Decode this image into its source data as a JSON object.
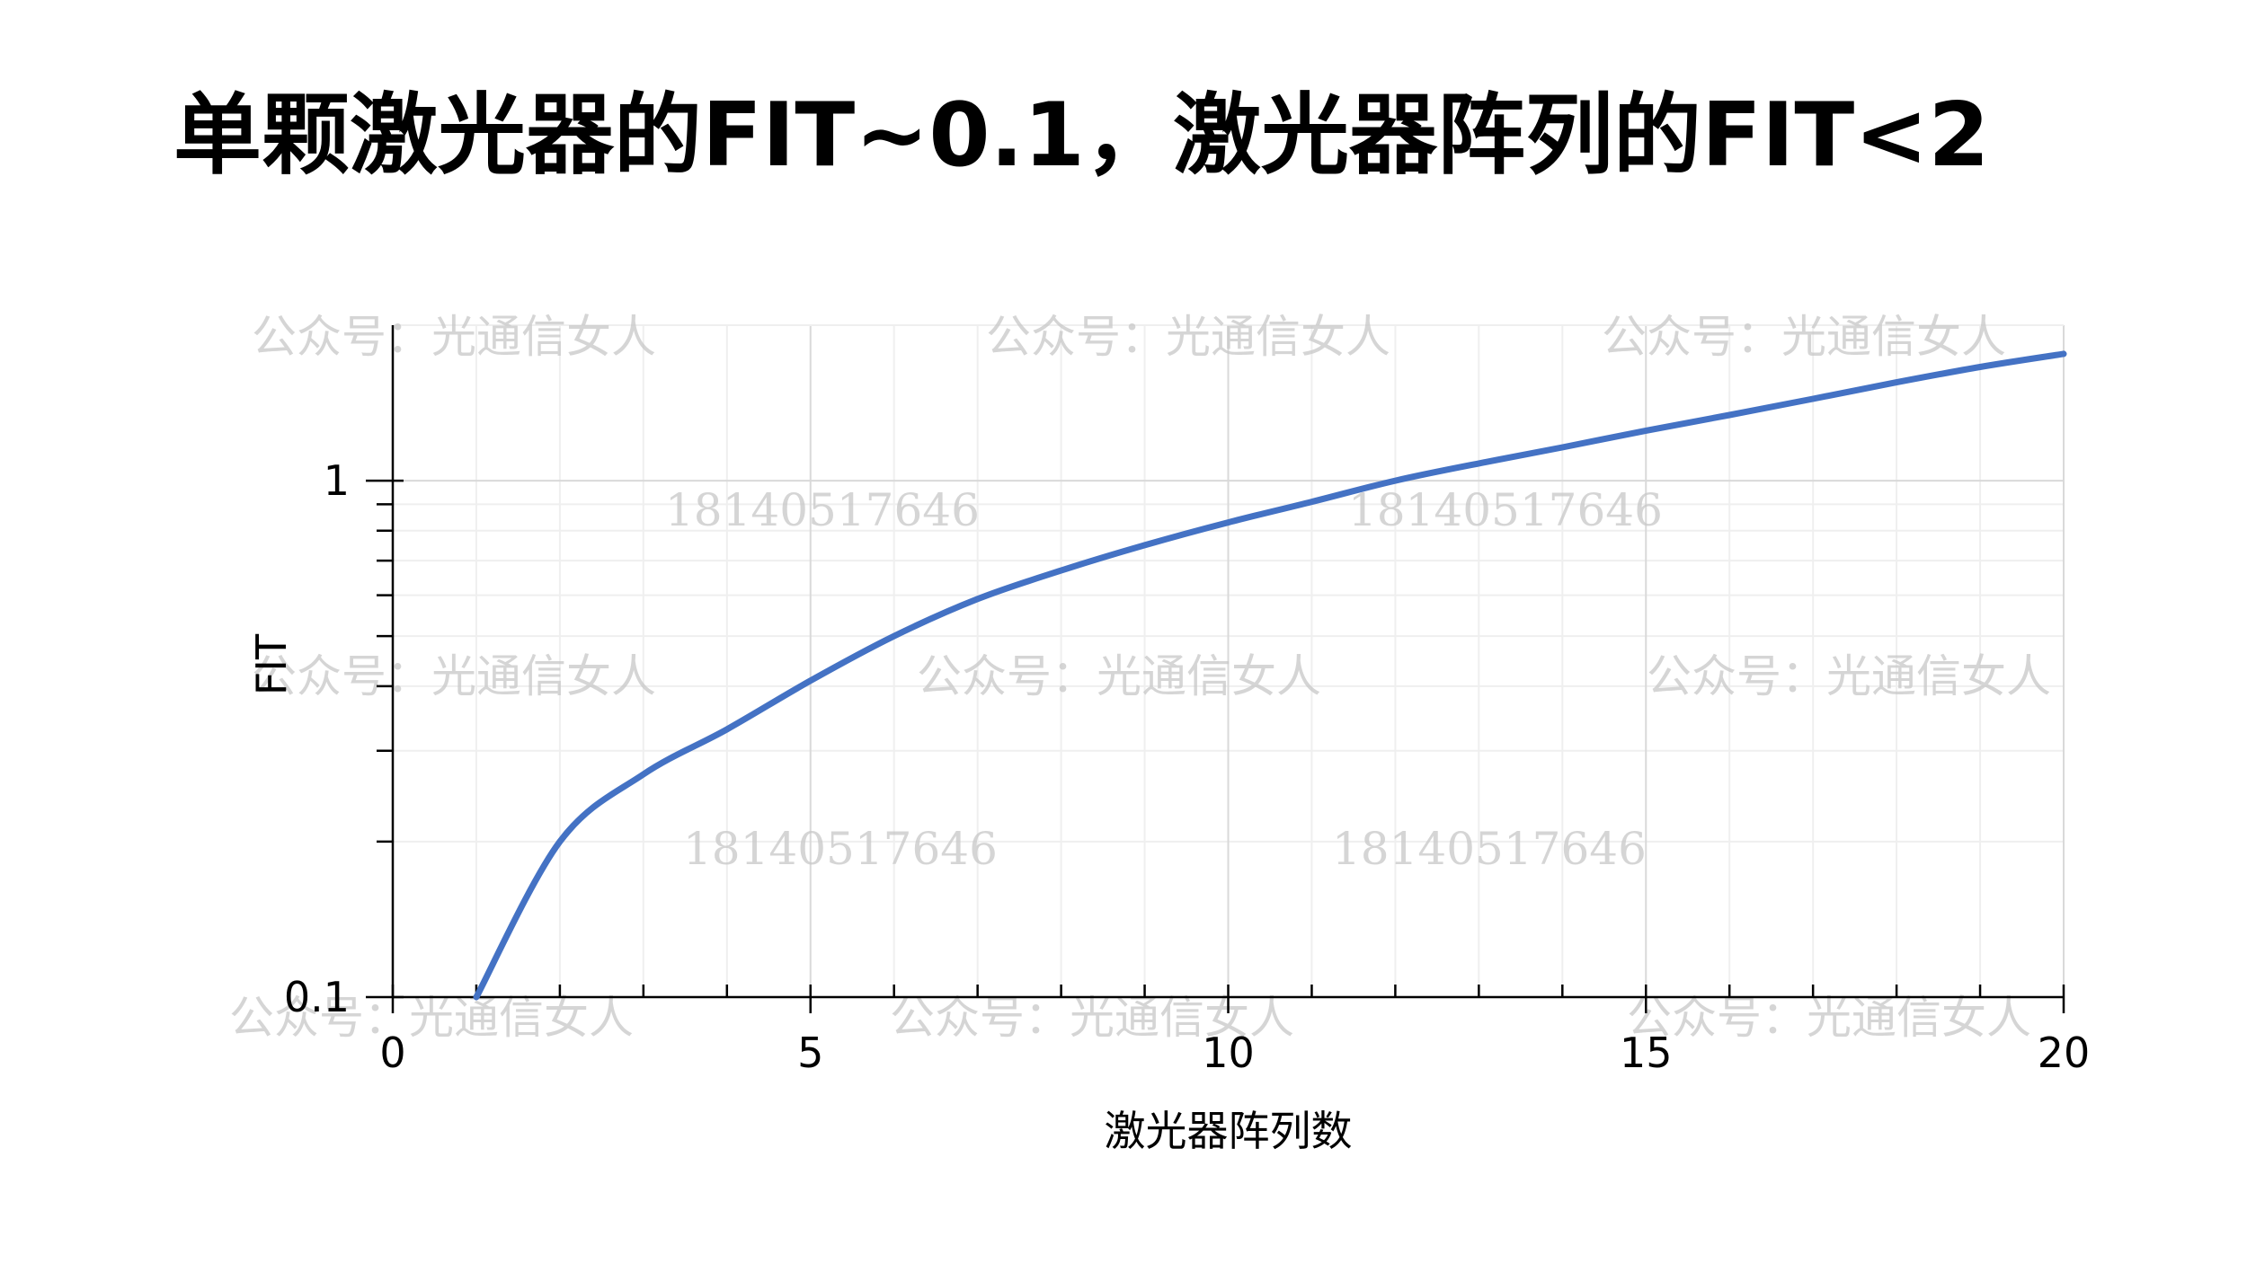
{
  "slide": {
    "title": "单颗激光器的FIT~0.1，激光器阵列的FIT<2"
  },
  "watermarks": {
    "account": "公众号：光通信女人",
    "phone": "18140517646"
  },
  "colors": {
    "line": "#4472c4",
    "axis": "#000000",
    "major_grid": "#d9d9d9",
    "minor_grid": "#efefef"
  },
  "chart_data": {
    "type": "line",
    "title": "",
    "xlabel": "激光器阵列数",
    "ylabel": "FIT",
    "x_scale": "linear",
    "y_scale": "log",
    "xlim": [
      0,
      20
    ],
    "ylim": [
      0.1,
      2
    ],
    "x_ticks": [
      0,
      5,
      10,
      15,
      20
    ],
    "x_tick_labels": [
      "0",
      "5",
      "10",
      "15",
      "20"
    ],
    "y_ticks": [
      0.1,
      1
    ],
    "y_tick_labels": [
      "0.1",
      "1"
    ],
    "grid": true,
    "legend": "none",
    "series": [
      {
        "x": [
          1,
          2,
          3,
          4,
          5,
          6,
          7,
          8,
          9,
          10,
          11,
          12,
          13,
          14,
          15,
          16,
          17,
          18,
          19,
          20
        ],
        "values": [
          0.1,
          0.2,
          0.27,
          0.33,
          0.41,
          0.5,
          0.59,
          0.67,
          0.75,
          0.83,
          0.91,
          1.0,
          1.08,
          1.16,
          1.25,
          1.34,
          1.44,
          1.55,
          1.66,
          1.76
        ]
      }
    ]
  }
}
